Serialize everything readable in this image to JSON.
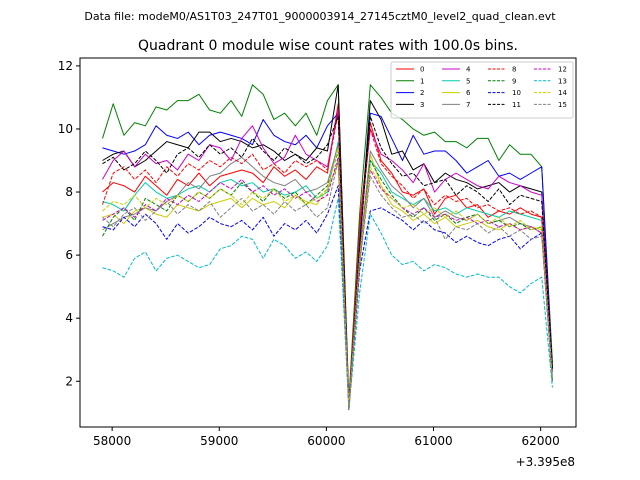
{
  "chart_data": {
    "type": "line",
    "suptitle": "Data file: modeM0/AS1T03_247T01_9000003914_27145cztM0_level2_quad_clean.evt",
    "title": "Quadrant 0 module wise count rates with 100.0s bins.",
    "xlabel": "",
    "ylabel": "",
    "x_offset_label": "+3.395e8",
    "xlim": [
      57700,
      62330
    ],
    "ylim": [
      0.55,
      12.25
    ],
    "x_ticks": [
      58000,
      59000,
      60000,
      61000,
      62000
    ],
    "x_tick_labels": [
      "58000",
      "59000",
      "60000",
      "61000",
      "62000"
    ],
    "y_ticks": [
      2,
      4,
      6,
      8,
      10,
      12
    ],
    "y_tick_labels": [
      "2",
      "4",
      "6",
      "8",
      "10",
      "12"
    ],
    "legend_position": "top-right",
    "legend_columns": 4,
    "grid": false,
    "x": [
      57910,
      58010,
      58110,
      58210,
      58310,
      58410,
      58510,
      58610,
      58710,
      58810,
      58910,
      59010,
      59110,
      59210,
      59310,
      59410,
      59510,
      59610,
      59710,
      59810,
      59910,
      60010,
      60110,
      60210,
      60310,
      60410,
      60510,
      60610,
      60710,
      60810,
      60910,
      61010,
      61110,
      61210,
      61310,
      61410,
      61510,
      61610,
      61710,
      61810,
      61910,
      62010,
      62110
    ],
    "series": [
      {
        "name": "0",
        "color": "#ff0000",
        "dash": "solid",
        "values": [
          8.0,
          8.3,
          8.2,
          8.0,
          8.5,
          8.2,
          7.9,
          8.4,
          8.2,
          8.6,
          8.2,
          8.5,
          8.6,
          8.7,
          8.6,
          8.3,
          8.8,
          8.5,
          8.7,
          8.4,
          8.8,
          8.6,
          10.8,
          1.3,
          7.0,
          10.2,
          9.0,
          8.6,
          8.0,
          7.9,
          8.1,
          7.3,
          7.8,
          7.9,
          7.5,
          7.6,
          7.2,
          7.4,
          7.3,
          7.5,
          7.3,
          7.2,
          2.5
        ]
      },
      {
        "name": "1",
        "color": "#008000",
        "dash": "solid",
        "values": [
          9.7,
          10.8,
          9.8,
          10.2,
          10.1,
          10.7,
          10.6,
          10.9,
          10.9,
          11.1,
          10.6,
          10.5,
          10.9,
          10.4,
          11.4,
          11.1,
          10.3,
          10.5,
          10.1,
          10.5,
          9.8,
          10.9,
          11.4,
          1.4,
          7.3,
          11.4,
          11.0,
          10.5,
          10.3,
          10.0,
          9.8,
          9.9,
          9.6,
          9.6,
          9.4,
          9.7,
          9.7,
          9.0,
          9.5,
          9.2,
          9.2,
          8.8,
          2.6
        ]
      },
      {
        "name": "2",
        "color": "#0000ff",
        "dash": "solid",
        "values": [
          9.4,
          9.3,
          9.2,
          9.3,
          9.5,
          10.1,
          9.8,
          9.7,
          9.9,
          9.5,
          9.8,
          9.9,
          9.8,
          9.7,
          9.5,
          10.3,
          9.8,
          9.6,
          9.5,
          9.8,
          9.4,
          10.1,
          10.5,
          1.2,
          6.2,
          10.5,
          10.4,
          9.7,
          9.0,
          9.8,
          9.2,
          9.3,
          9.3,
          9.0,
          8.6,
          8.8,
          9.0,
          8.5,
          8.6,
          8.4,
          8.6,
          8.8,
          2.4
        ]
      },
      {
        "name": "3",
        "color": "#000000",
        "dash": "solid",
        "values": [
          9.0,
          9.2,
          9.3,
          8.8,
          9.0,
          9.3,
          9.6,
          9.5,
          9.4,
          9.9,
          9.9,
          9.6,
          9.7,
          9.6,
          9.4,
          9.5,
          9.3,
          9.0,
          9.2,
          9.0,
          9.4,
          9.3,
          11.4,
          1.1,
          6.4,
          10.9,
          10.3,
          9.2,
          9.3,
          8.7,
          8.9,
          8.3,
          8.6,
          8.4,
          8.3,
          8.1,
          8.2,
          8.3,
          8.0,
          8.2,
          8.1,
          8.0,
          2.4
        ]
      },
      {
        "name": "4",
        "color": "#cc00cc",
        "dash": "solid",
        "values": [
          8.4,
          9.0,
          9.3,
          8.8,
          9.2,
          8.9,
          9.0,
          8.7,
          9.2,
          9.0,
          9.5,
          9.4,
          9.0,
          9.7,
          10.1,
          9.4,
          8.9,
          9.1,
          9.8,
          9.2,
          9.0,
          8.8,
          10.6,
          1.2,
          6.7,
          10.0,
          9.2,
          9.0,
          8.7,
          8.3,
          8.9,
          8.0,
          8.4,
          8.6,
          8.4,
          8.2,
          8.1,
          8.5,
          8.3,
          8.2,
          8.0,
          7.9,
          2.3
        ]
      },
      {
        "name": "5",
        "color": "#00ccaa",
        "dash": "solid",
        "values": [
          7.7,
          7.6,
          7.4,
          7.9,
          8.3,
          8.0,
          7.8,
          7.9,
          8.1,
          8.2,
          8.0,
          8.3,
          8.4,
          8.2,
          8.3,
          8.0,
          8.1,
          7.9,
          8.0,
          8.2,
          7.8,
          8.0,
          9.6,
          1.2,
          5.9,
          9.0,
          8.6,
          8.0,
          7.8,
          7.6,
          7.8,
          7.4,
          7.5,
          7.3,
          7.5,
          7.4,
          7.3,
          7.2,
          7.4,
          7.3,
          7.2,
          7.1,
          2.1
        ]
      },
      {
        "name": "6",
        "color": "#cccc00",
        "dash": "solid",
        "values": [
          7.2,
          7.3,
          7.0,
          7.4,
          7.5,
          7.3,
          7.2,
          7.6,
          7.5,
          7.4,
          7.6,
          7.7,
          7.8,
          7.5,
          7.8,
          7.6,
          7.7,
          7.5,
          7.9,
          7.7,
          7.6,
          8.1,
          8.9,
          1.1,
          5.6,
          9.2,
          8.2,
          7.6,
          7.4,
          7.1,
          7.3,
          7.0,
          7.2,
          6.9,
          7.0,
          7.1,
          6.9,
          6.8,
          7.0,
          6.8,
          6.9,
          6.8,
          2.0
        ]
      },
      {
        "name": "7",
        "color": "#808080",
        "dash": "solid",
        "values": [
          6.8,
          7.0,
          7.2,
          7.3,
          7.5,
          7.4,
          7.7,
          7.9,
          8.3,
          8.1,
          8.5,
          8.6,
          8.9,
          9.1,
          8.8,
          8.5,
          8.3,
          8.2,
          8.4,
          8.0,
          8.1,
          8.3,
          9.5,
          1.2,
          6.0,
          9.3,
          8.7,
          8.2,
          7.9,
          7.5,
          7.8,
          7.2,
          7.4,
          7.2,
          7.1,
          7.3,
          7.0,
          7.1,
          7.2,
          7.0,
          6.9,
          6.7,
          2.0
        ]
      },
      {
        "name": "8",
        "color": "#ff0000",
        "dash": "dashed",
        "values": [
          7.6,
          8.6,
          8.8,
          8.4,
          8.7,
          8.3,
          8.8,
          8.5,
          8.9,
          8.7,
          9.0,
          8.8,
          9.1,
          8.9,
          9.2,
          8.7,
          8.9,
          8.6,
          9.0,
          8.8,
          9.0,
          8.7,
          10.5,
          1.2,
          6.8,
          10.0,
          8.9,
          8.5,
          8.2,
          7.8,
          8.1,
          7.6,
          7.9,
          7.7,
          7.8,
          7.5,
          7.6,
          7.4,
          7.5,
          7.3,
          7.4,
          7.2,
          2.3
        ]
      },
      {
        "name": "9",
        "color": "#008000",
        "dash": "dashed",
        "values": [
          6.6,
          7.2,
          7.5,
          7.1,
          7.8,
          7.6,
          7.4,
          7.9,
          7.7,
          8.0,
          7.8,
          8.1,
          7.9,
          8.3,
          8.0,
          7.7,
          8.1,
          7.8,
          8.0,
          7.6,
          7.9,
          8.2,
          9.3,
          1.1,
          5.9,
          9.0,
          8.4,
          7.9,
          7.5,
          7.2,
          7.5,
          7.1,
          7.3,
          7.0,
          7.2,
          7.3,
          7.0,
          7.1,
          6.9,
          7.0,
          6.8,
          6.9,
          2.1
        ]
      },
      {
        "name": "10",
        "color": "#0000ff",
        "dash": "dashed",
        "values": [
          6.9,
          6.8,
          7.2,
          6.9,
          7.3,
          7.0,
          6.5,
          7.0,
          6.7,
          6.9,
          7.2,
          7.0,
          6.9,
          7.1,
          6.8,
          7.2,
          6.6,
          7.0,
          6.8,
          7.1,
          6.7,
          7.3,
          8.2,
          1.1,
          5.5,
          7.4,
          7.5,
          7.3,
          7.1,
          6.8,
          7.1,
          6.8,
          6.7,
          6.4,
          6.6,
          6.4,
          6.3,
          6.5,
          6.6,
          6.2,
          6.5,
          6.7,
          2.0
        ]
      },
      {
        "name": "11",
        "color": "#000000",
        "dash": "dashed",
        "values": [
          8.9,
          9.1,
          8.7,
          8.9,
          9.3,
          9.0,
          8.6,
          9.2,
          9.4,
          9.1,
          9.5,
          9.2,
          9.4,
          9.1,
          9.7,
          9.3,
          9.0,
          9.4,
          9.2,
          8.9,
          9.1,
          9.5,
          10.4,
          1.2,
          6.3,
          10.4,
          9.4,
          8.9,
          8.5,
          8.6,
          8.2,
          8.3,
          8.4,
          7.9,
          8.2,
          8.0,
          7.7,
          8.1,
          7.6,
          7.9,
          7.8,
          7.7,
          2.4
        ]
      },
      {
        "name": "12",
        "color": "#cc00cc",
        "dash": "dashed",
        "values": [
          7.1,
          7.3,
          7.5,
          7.2,
          7.6,
          7.4,
          7.8,
          7.6,
          7.9,
          7.7,
          8.0,
          8.3,
          8.1,
          8.4,
          8.0,
          8.2,
          7.9,
          8.1,
          7.8,
          8.0,
          7.7,
          7.9,
          9.1,
          1.2,
          5.8,
          8.7,
          8.1,
          7.8,
          7.5,
          7.3,
          7.5,
          7.2,
          7.3,
          7.1,
          7.2,
          7.0,
          7.1,
          6.9,
          7.0,
          6.8,
          6.9,
          6.7,
          2.0
        ]
      },
      {
        "name": "13",
        "color": "#00bbcc",
        "dash": "dashed",
        "values": [
          5.6,
          5.5,
          5.3,
          5.9,
          6.1,
          5.5,
          5.9,
          6.0,
          5.8,
          5.6,
          5.7,
          6.2,
          6.3,
          6.6,
          6.5,
          5.9,
          6.5,
          6.3,
          5.9,
          6.1,
          5.8,
          6.3,
          7.8,
          1.1,
          4.8,
          7.3,
          6.7,
          6.0,
          5.7,
          5.8,
          5.5,
          5.7,
          5.6,
          5.4,
          5.3,
          5.4,
          5.3,
          5.3,
          5.0,
          4.8,
          5.1,
          5.3,
          1.8
        ]
      },
      {
        "name": "14",
        "color": "#cccc00",
        "dash": "dashed",
        "values": [
          7.4,
          7.7,
          7.6,
          7.9,
          7.5,
          7.8,
          7.6,
          7.9,
          7.7,
          8.0,
          7.8,
          8.1,
          7.9,
          7.6,
          8.0,
          7.8,
          8.1,
          7.7,
          7.9,
          7.6,
          7.8,
          8.1,
          9.4,
          1.2,
          5.9,
          8.8,
          8.2,
          7.8,
          7.5,
          7.6,
          7.3,
          7.5,
          7.2,
          7.4,
          7.1,
          7.3,
          7.0,
          7.2,
          6.9,
          7.1,
          6.8,
          6.9,
          2.1
        ]
      },
      {
        "name": "15",
        "color": "#808080",
        "dash": "dashed",
        "values": [
          7.2,
          6.9,
          7.3,
          7.5,
          7.1,
          7.4,
          7.7,
          7.3,
          7.6,
          7.4,
          7.7,
          7.2,
          7.5,
          7.8,
          7.4,
          7.6,
          7.3,
          7.7,
          7.4,
          7.6,
          7.2,
          7.5,
          9.0,
          1.1,
          5.7,
          8.5,
          7.9,
          7.5,
          7.2,
          7.3,
          7.0,
          7.2,
          6.5,
          6.9,
          6.8,
          7.0,
          6.7,
          6.9,
          6.6,
          6.8,
          6.5,
          6.6,
          2.0
        ]
      }
    ]
  }
}
